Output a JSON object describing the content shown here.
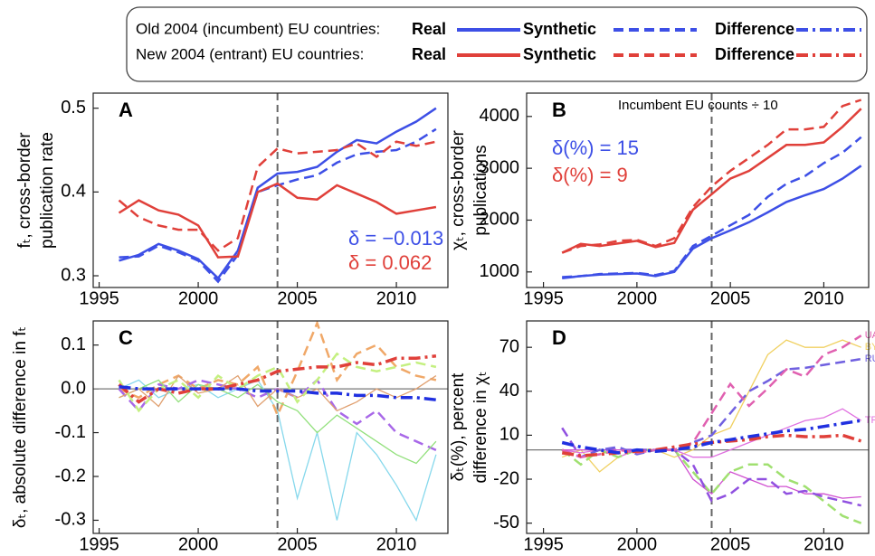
{
  "legend": {
    "rows": [
      {
        "label": "Old 2004 (incumbent) EU countries:",
        "color": "#3d4fe6"
      },
      {
        "label": "New 2004 (entrant) EU countries:",
        "color": "#e0403a"
      }
    ],
    "entries": [
      {
        "text": "Real",
        "style": "solid"
      },
      {
        "text": "Synthetic",
        "style": "dashed"
      },
      {
        "text": "Difference",
        "style": "dashdot"
      }
    ]
  },
  "chart_data": [
    {
      "type": "line",
      "panel": "A",
      "y_label": [
        "fₜ, cross-border",
        "publication rate"
      ],
      "xlim": [
        1994.7,
        2012.6
      ],
      "xticks": [
        1995,
        2000,
        2005,
        2010
      ],
      "ylim": [
        0.286,
        0.518
      ],
      "yticks": [
        0.3,
        0.4,
        0.5
      ],
      "vline": 2004,
      "x": [
        1996,
        1997,
        1998,
        1999,
        2000,
        2001,
        2002,
        2003,
        2004,
        2005,
        2006,
        2007,
        2008,
        2009,
        2010,
        2011,
        2012
      ],
      "series": [
        {
          "color": "#3d4fe6",
          "style": "solid",
          "line_width": 2.5,
          "values": [
            0.318,
            0.325,
            0.338,
            0.33,
            0.32,
            0.297,
            0.33,
            0.405,
            0.422,
            0.424,
            0.43,
            0.448,
            0.462,
            0.458,
            0.472,
            0.484,
            0.5
          ]
        },
        {
          "color": "#3d4fe6",
          "style": "dashed",
          "line_width": 2.5,
          "values": [
            0.322,
            0.323,
            0.336,
            0.328,
            0.318,
            0.293,
            0.325,
            0.4,
            0.408,
            0.415,
            0.42,
            0.435,
            0.445,
            0.448,
            0.45,
            0.46,
            0.475
          ]
        },
        {
          "color": "#e0403a",
          "style": "solid",
          "line_width": 2.5,
          "values": [
            0.375,
            0.39,
            0.378,
            0.373,
            0.36,
            0.322,
            0.323,
            0.4,
            0.41,
            0.393,
            0.391,
            0.408,
            0.398,
            0.388,
            0.374,
            0.378,
            0.382
          ]
        },
        {
          "color": "#e0403a",
          "style": "dashed",
          "line_width": 2.5,
          "values": [
            0.39,
            0.37,
            0.36,
            0.355,
            0.355,
            0.33,
            0.345,
            0.43,
            0.452,
            0.446,
            0.448,
            0.45,
            0.458,
            0.442,
            0.46,
            0.455,
            0.46
          ]
        }
      ],
      "annotations": [
        {
          "text": "δ = −0.013",
          "color": "#3d4fe6"
        },
        {
          "text": "δ = 0.062",
          "color": "#e0403a"
        }
      ]
    },
    {
      "type": "line",
      "panel": "B",
      "y_label": [
        "χₜ, cross-border",
        "publications"
      ],
      "xlim": [
        1994.1,
        2012.4
      ],
      "xticks": [
        1995,
        2000,
        2005,
        2010
      ],
      "ylim": [
        700,
        4450
      ],
      "yticks": [
        1000,
        2000,
        3000,
        4000
      ],
      "vline": 2004,
      "x": [
        1996,
        1997,
        1998,
        1999,
        2000,
        2001,
        2002,
        2003,
        2004,
        2005,
        2006,
        2007,
        2008,
        2009,
        2010,
        2011,
        2012
      ],
      "series": [
        {
          "color": "#3d4fe6",
          "style": "solid",
          "line_width": 2.5,
          "values": [
            880,
            920,
            950,
            960,
            970,
            920,
            1000,
            1450,
            1650,
            1800,
            1960,
            2150,
            2350,
            2480,
            2600,
            2800,
            3050
          ]
        },
        {
          "color": "#3d4fe6",
          "style": "dashed",
          "line_width": 2.5,
          "values": [
            900,
            920,
            960,
            970,
            980,
            940,
            1020,
            1500,
            1700,
            1900,
            2100,
            2450,
            2700,
            2850,
            3100,
            3300,
            3600
          ]
        },
        {
          "color": "#e0403a",
          "style": "solid",
          "line_width": 2.5,
          "values": [
            1370,
            1540,
            1500,
            1550,
            1600,
            1480,
            1560,
            2200,
            2500,
            2800,
            2950,
            3200,
            3450,
            3450,
            3500,
            3800,
            4150
          ]
        },
        {
          "color": "#e0403a",
          "style": "dashed",
          "line_width": 2.5,
          "values": [
            1370,
            1500,
            1530,
            1600,
            1620,
            1500,
            1650,
            2250,
            2650,
            2950,
            3200,
            3450,
            3750,
            3750,
            3800,
            4200,
            4320
          ]
        }
      ],
      "annotations": [
        {
          "text": "Incumbent EU counts ÷ 10",
          "color": "#000000"
        },
        {
          "text": "δ(%) = 15",
          "color": "#3d4fe6"
        },
        {
          "text": "δ(%) = 9",
          "color": "#e0403a"
        }
      ]
    },
    {
      "type": "line",
      "panel": "C",
      "y_label": [
        "δₜ, absolute difference in fₜ"
      ],
      "xlim": [
        1994.7,
        2012.6
      ],
      "xticks": [
        1995,
        2000,
        2005,
        2010
      ],
      "ylim": [
        -0.33,
        0.155
      ],
      "yticks": [
        0.1,
        {
          "value": 0,
          "label": "0.0"
        },
        -0.1,
        -0.2,
        -0.3
      ],
      "vline": 2004,
      "hline": 0,
      "x": [
        1996,
        1997,
        1998,
        1999,
        2000,
        2001,
        2002,
        2003,
        2004,
        2005,
        2006,
        2007,
        2008,
        2009,
        2010,
        2011,
        2012
      ],
      "series": [
        {
          "color": "#86d8ec",
          "style": "solid",
          "line_width": 1.3,
          "values": [
            0.0,
            0.02,
            -0.02,
            0.0,
            0.01,
            -0.02,
            0.0,
            0.02,
            -0.05,
            -0.25,
            -0.1,
            -0.3,
            -0.1,
            -0.15,
            -0.22,
            -0.3,
            -0.15
          ]
        },
        {
          "color": "#f0a868",
          "style": "dashed",
          "line_width": 2.5,
          "values": [
            0.0,
            -0.02,
            0.01,
            0.03,
            0.0,
            0.02,
            0.01,
            0.05,
            -0.06,
            0.04,
            0.15,
            0.02,
            0.08,
            0.1,
            0.05,
            0.03,
            0.02
          ]
        },
        {
          "color": "#a868e8",
          "style": "dashed",
          "line_width": 2.5,
          "values": [
            0.0,
            -0.05,
            0.01,
            0.0,
            0.02,
            0.01,
            0.0,
            -0.02,
            0.0,
            -0.02,
            0.02,
            -0.05,
            -0.08,
            -0.05,
            -0.1,
            -0.12,
            -0.14
          ]
        },
        {
          "color": "#92e07c",
          "style": "solid",
          "line_width": 1.3,
          "values": [
            -0.02,
            0.0,
            0.02,
            -0.03,
            0.01,
            0.0,
            -0.02,
            0.01,
            -0.03,
            -0.05,
            -0.1,
            -0.06,
            -0.09,
            -0.12,
            -0.15,
            -0.17,
            -0.12
          ]
        },
        {
          "color": "#e0a070",
          "style": "solid",
          "line_width": 1.3,
          "values": [
            -0.02,
            0.0,
            -0.04,
            0.03,
            -0.01,
            0.0,
            0.03,
            -0.04,
            0.0,
            -0.02,
            0.0,
            -0.05,
            -0.03,
            0.0,
            -0.02,
            0.0,
            0.03
          ]
        },
        {
          "color": "#c4f080",
          "style": "dashed",
          "line_width": 2.5,
          "values": [
            0.02,
            -0.05,
            0.0,
            0.02,
            -0.02,
            0.03,
            0.0,
            0.03,
            0.05,
            -0.03,
            0.02,
            0.08,
            0.05,
            0.04,
            0.05,
            0.06,
            0.05
          ]
        },
        {
          "color": "#e0403a",
          "style": "dashdot",
          "line_width": 3.5,
          "values": [
            0.01,
            -0.03,
            0.0,
            -0.01,
            0.0,
            0.0,
            0.01,
            0.02,
            0.04,
            0.045,
            0.05,
            0.05,
            0.06,
            0.055,
            0.07,
            0.07,
            0.075
          ]
        },
        {
          "color": "#2030e0",
          "style": "dashdot",
          "line_width": 3.5,
          "values": [
            0.005,
            0.0,
            0.0,
            0.0,
            0.0,
            0.0,
            0.0,
            -0.005,
            -0.005,
            -0.005,
            -0.01,
            -0.01,
            -0.015,
            -0.015,
            -0.02,
            -0.02,
            -0.025
          ]
        }
      ],
      "annotations": []
    },
    {
      "type": "line",
      "panel": "D",
      "y_label": [
        "δₜ(%), percent",
        "difference in χₜ"
      ],
      "xlim": [
        1994.1,
        2012.4
      ],
      "xticks": [
        1995,
        2000,
        2005,
        2010
      ],
      "ylim": [
        -57,
        88
      ],
      "yticks": [
        -50,
        -20,
        10,
        40,
        70
      ],
      "vline": 2004,
      "hline": 0,
      "x": [
        1996,
        1997,
        1998,
        1999,
        2000,
        2001,
        2002,
        2003,
        2004,
        2005,
        2006,
        2007,
        2008,
        2009,
        2010,
        2011,
        2012
      ],
      "series": [
        {
          "color": "#f0d060",
          "style": "solid",
          "line_width": 1.3,
          "label": "BY",
          "values": [
            -5,
            0,
            -15,
            -5,
            0,
            0,
            -5,
            0,
            10,
            15,
            40,
            65,
            75,
            70,
            70,
            75,
            70
          ]
        },
        {
          "color": "#e070e0",
          "style": "solid",
          "line_width": 1.3,
          "label": "TR",
          "values": [
            0,
            -2,
            0,
            -5,
            0,
            0,
            0,
            -5,
            -5,
            0,
            5,
            10,
            15,
            20,
            22,
            28,
            20
          ]
        },
        {
          "color": "#d050d0",
          "style": "solid",
          "line_width": 1.3,
          "values": [
            0,
            0,
            0,
            0,
            0,
            0,
            0,
            -20,
            -30,
            -15,
            -20,
            -25,
            -25,
            -30,
            -30,
            -33,
            -32
          ]
        },
        {
          "color": "#a0e070",
          "style": "dashed",
          "line_width": 2.5,
          "values": [
            0,
            -10,
            0,
            -5,
            0,
            0,
            0,
            -15,
            -30,
            -15,
            -10,
            -10,
            -20,
            -25,
            -35,
            -45,
            -50
          ]
        },
        {
          "color": "#9050e0",
          "style": "dashed",
          "line_width": 2.5,
          "values": [
            15,
            -5,
            0,
            0,
            0,
            0,
            0,
            -10,
            -35,
            -30,
            -20,
            -20,
            -30,
            -28,
            -32,
            -35,
            -38
          ]
        },
        {
          "color": "#7060e0",
          "style": "dashed",
          "line_width": 2.5,
          "label": "RU",
          "values": [
            0,
            -5,
            0,
            2,
            -3,
            0,
            0,
            5,
            10,
            25,
            40,
            47,
            55,
            56,
            58,
            60,
            62
          ]
        },
        {
          "color": "#e060b0",
          "style": "dashed",
          "line_width": 2.5,
          "label": "UA",
          "values": [
            0,
            -5,
            -3,
            0,
            -2,
            0,
            0,
            5,
            25,
            45,
            30,
            42,
            55,
            50,
            65,
            70,
            78
          ]
        },
        {
          "color": "#e0403a",
          "style": "dashdot",
          "line_width": 3.5,
          "values": [
            -2,
            -4,
            -3,
            -2,
            -1,
            0,
            2,
            4,
            5,
            6,
            7,
            9,
            10,
            9,
            9,
            10,
            6
          ]
        },
        {
          "color": "#2030e0",
          "style": "dashdot",
          "line_width": 3.5,
          "values": [
            5,
            2,
            0,
            -2,
            0,
            -1,
            0,
            2,
            5,
            7,
            9,
            11,
            13,
            14,
            16,
            18,
            20
          ]
        }
      ],
      "annotations": []
    }
  ]
}
